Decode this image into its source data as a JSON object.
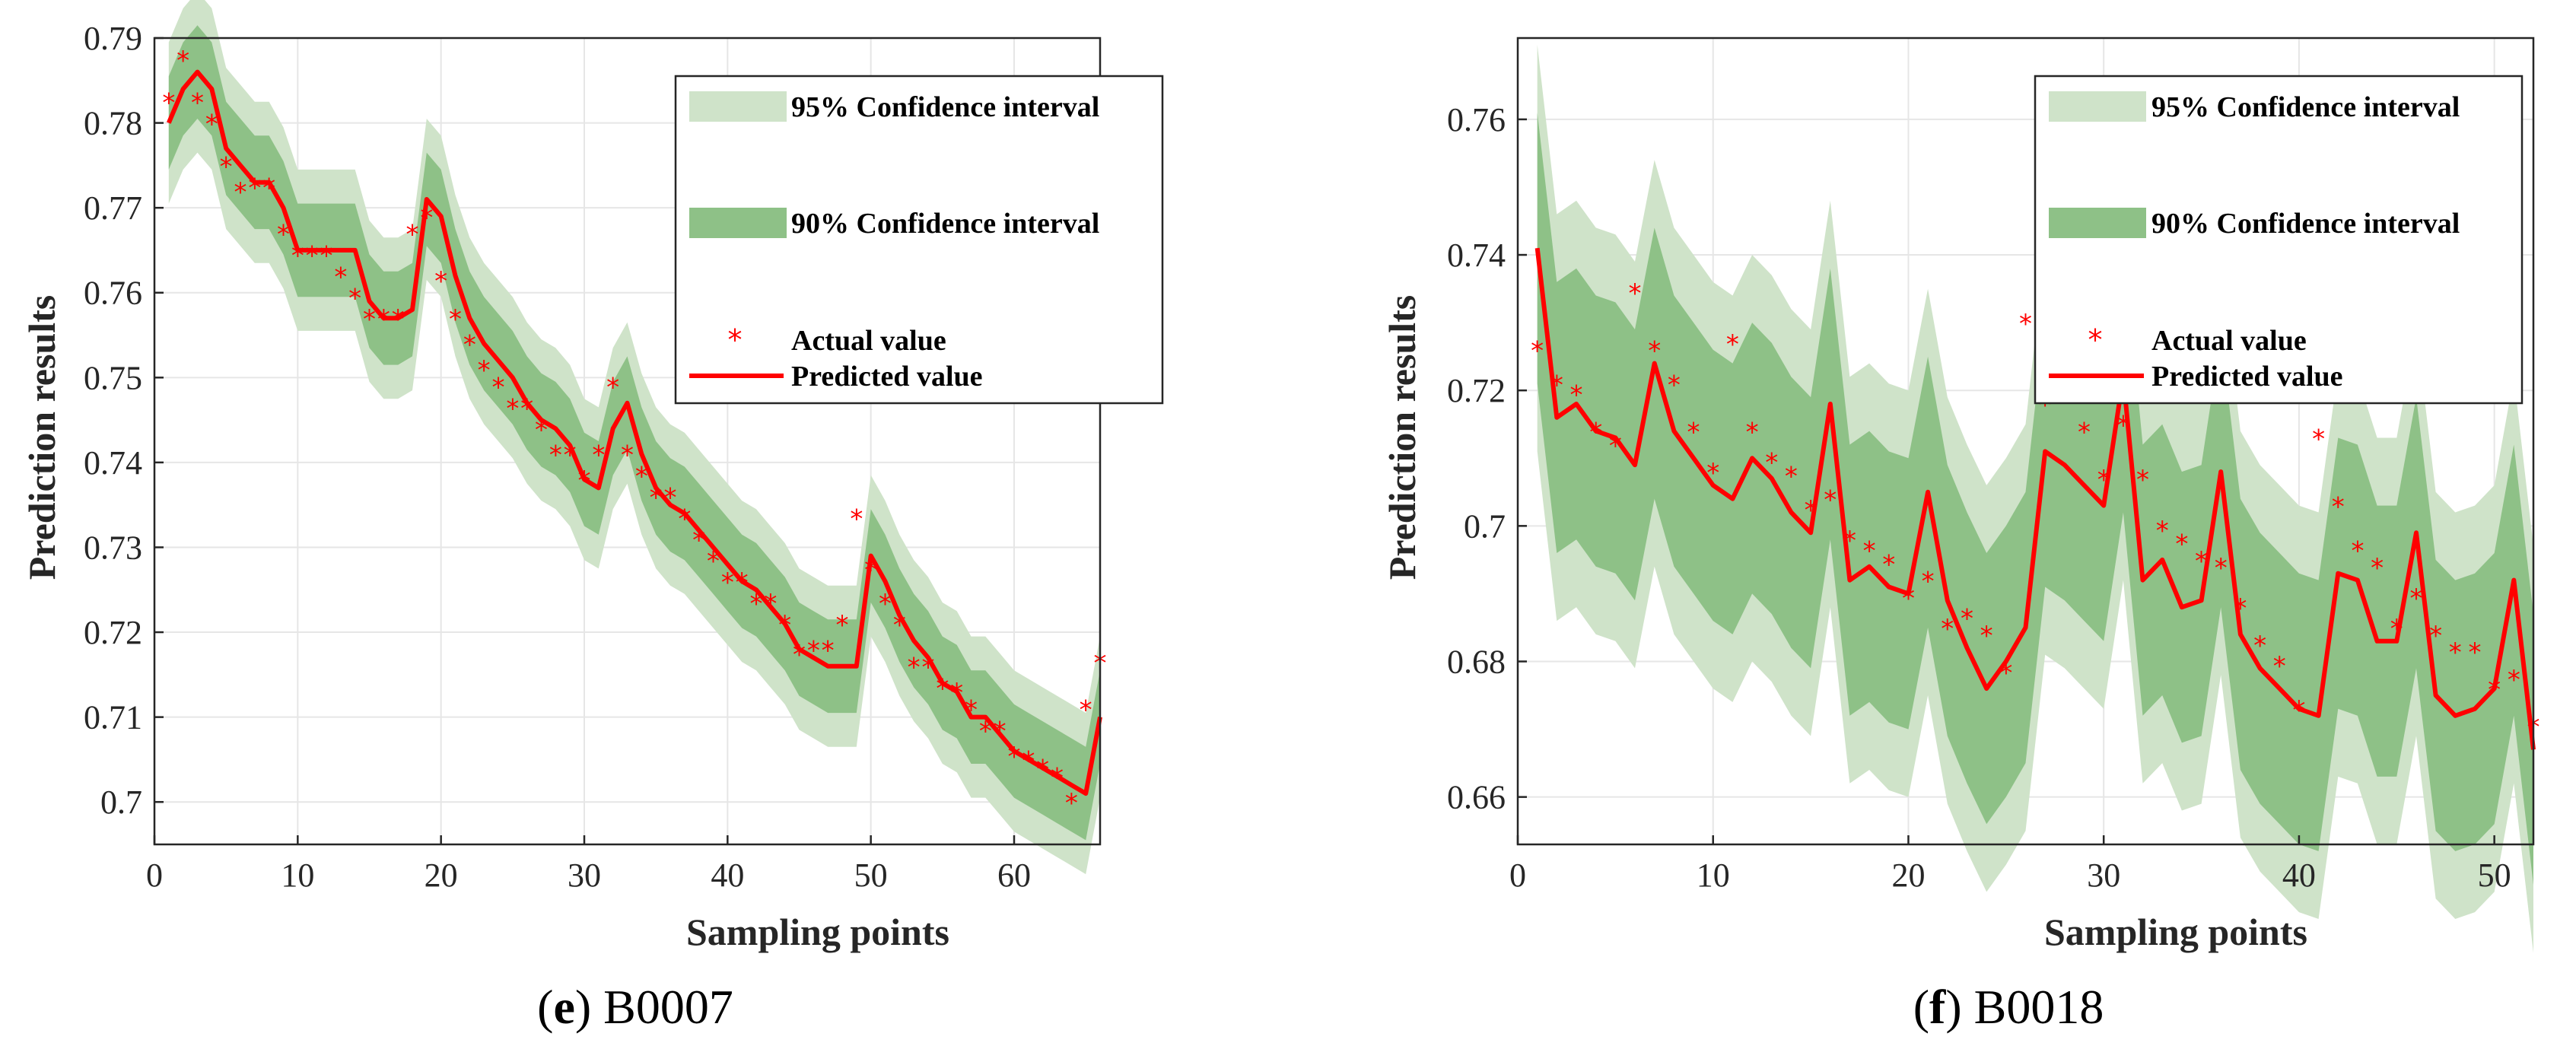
{
  "colors": {
    "band95": "#cfe3c9",
    "band90": "#8ec187",
    "predicted": "#ff0000",
    "actual": "#ff0000",
    "axis": "#262626",
    "grid": "#e6e6e6"
  },
  "chart_data": [
    {
      "id": "e",
      "type": "line",
      "caption_letter": "e",
      "caption_text": " B0007",
      "xlabel": "Sampling points",
      "ylabel": "Prediction results",
      "xlim": [
        0,
        66
      ],
      "ylim": [
        0.695,
        0.79
      ],
      "xticks": [
        0,
        10,
        20,
        30,
        40,
        50,
        60
      ],
      "xtick_labels": [
        "0",
        "10",
        "20",
        "30",
        "40",
        "50",
        "60"
      ],
      "yticks": [
        0.7,
        0.71,
        0.72,
        0.73,
        0.74,
        0.75,
        0.76,
        0.77,
        0.78,
        0.79
      ],
      "ytick_labels": [
        "0.7",
        "0.71",
        "0.72",
        "0.73",
        "0.74",
        "0.75",
        "0.76",
        "0.77",
        "0.78",
        "0.79"
      ],
      "grid": true,
      "legend": [
        "95% Confidence interval",
        "90% Confidence interval",
        "Actual value",
        "Predicted value"
      ],
      "legend_position": "top-right",
      "band95_halfwidth": 0.0095,
      "band90_halfwidth": 0.0055,
      "x": [
        1,
        2,
        3,
        4,
        5,
        6,
        7,
        8,
        9,
        10,
        11,
        12,
        13,
        14,
        15,
        16,
        17,
        18,
        19,
        20,
        21,
        22,
        23,
        24,
        25,
        26,
        27,
        28,
        29,
        30,
        31,
        32,
        33,
        34,
        35,
        36,
        37,
        38,
        39,
        40,
        41,
        42,
        43,
        44,
        45,
        46,
        47,
        48,
        49,
        50,
        51,
        52,
        53,
        54,
        55,
        56,
        57,
        58,
        59,
        60,
        61,
        62,
        63,
        64,
        65,
        66
      ],
      "predicted": [
        0.78,
        0.784,
        0.786,
        0.784,
        0.777,
        0.775,
        0.773,
        0.773,
        0.77,
        0.765,
        0.765,
        0.765,
        0.765,
        0.765,
        0.759,
        0.757,
        0.757,
        0.758,
        0.771,
        0.769,
        0.762,
        0.757,
        0.754,
        0.752,
        0.75,
        0.747,
        0.745,
        0.744,
        0.742,
        0.738,
        0.737,
        0.744,
        0.747,
        0.741,
        0.737,
        0.735,
        0.734,
        0.732,
        0.73,
        0.728,
        0.726,
        0.725,
        0.723,
        0.721,
        0.718,
        0.717,
        0.716,
        0.716,
        0.716,
        0.729,
        0.726,
        0.722,
        0.719,
        0.717,
        0.714,
        0.713,
        0.71,
        0.71,
        0.708,
        0.706,
        0.705,
        0.704,
        0.703,
        0.702,
        0.701,
        0.71
      ],
      "actual": [
        0.7825,
        0.7875,
        0.7825,
        0.78,
        0.775,
        0.772,
        0.7725,
        0.7725,
        0.767,
        0.7645,
        0.7645,
        0.7645,
        0.762,
        0.7595,
        0.757,
        0.757,
        0.757,
        0.767,
        0.769,
        0.7615,
        0.757,
        0.754,
        0.751,
        0.749,
        0.7465,
        0.7465,
        0.744,
        0.741,
        0.741,
        0.738,
        0.741,
        0.749,
        0.741,
        0.7385,
        0.736,
        0.736,
        0.7335,
        0.731,
        0.7285,
        0.726,
        0.726,
        0.7235,
        0.7235,
        0.721,
        0.7175,
        0.718,
        0.718,
        0.721,
        0.7335,
        0.7275,
        0.7235,
        0.721,
        0.716,
        0.716,
        0.7135,
        0.713,
        0.711,
        0.7085,
        0.7085,
        0.7055,
        0.705,
        0.704,
        0.703,
        0.7,
        0.711,
        0.7165
      ]
    },
    {
      "id": "f",
      "type": "line",
      "caption_letter": "f",
      "caption_text": " B0018",
      "xlabel": "Sampling points",
      "ylabel": "Prediction results",
      "xlim": [
        0,
        52
      ],
      "ylim": [
        0.653,
        0.772
      ],
      "xticks": [
        0,
        10,
        20,
        30,
        40,
        50
      ],
      "xtick_labels": [
        "0",
        "10",
        "20",
        "30",
        "40",
        "50"
      ],
      "yticks": [
        0.66,
        0.68,
        0.7,
        0.72,
        0.74,
        0.76
      ],
      "ytick_labels": [
        "0.66",
        "0.68",
        "0.7",
        "0.72",
        "0.74",
        "0.76"
      ],
      "grid": true,
      "legend": [
        "95% Confidence interval",
        "90% Confidence interval",
        "Actual value",
        "Predicted value"
      ],
      "legend_position": "top-right",
      "band95_halfwidth": 0.03,
      "band90_halfwidth": 0.02,
      "x": [
        1,
        2,
        3,
        4,
        5,
        6,
        7,
        8,
        9,
        10,
        11,
        12,
        13,
        14,
        15,
        16,
        17,
        18,
        19,
        20,
        21,
        22,
        23,
        24,
        25,
        26,
        27,
        28,
        29,
        30,
        31,
        32,
        33,
        34,
        35,
        36,
        37,
        38,
        39,
        40,
        41,
        42,
        43,
        44,
        45,
        46,
        47,
        48,
        49,
        50,
        51,
        52
      ],
      "predicted": [
        0.741,
        0.716,
        0.718,
        0.714,
        0.713,
        0.709,
        0.724,
        0.714,
        0.71,
        0.706,
        0.704,
        0.71,
        0.707,
        0.702,
        0.699,
        0.718,
        0.692,
        0.694,
        0.691,
        0.69,
        0.705,
        0.689,
        0.682,
        0.676,
        0.68,
        0.685,
        0.711,
        0.709,
        0.706,
        0.703,
        0.722,
        0.692,
        0.695,
        0.688,
        0.689,
        0.708,
        0.684,
        0.679,
        0.676,
        0.673,
        0.672,
        0.693,
        0.692,
        0.683,
        0.683,
        0.699,
        0.675,
        0.672,
        0.673,
        0.676,
        0.692,
        0.667
      ],
      "actual": [
        0.726,
        0.721,
        0.7195,
        0.714,
        0.712,
        0.7345,
        0.726,
        0.721,
        0.714,
        0.708,
        0.727,
        0.714,
        0.7095,
        0.7075,
        0.7025,
        0.704,
        0.698,
        0.6965,
        0.6945,
        0.6895,
        0.692,
        0.685,
        0.6865,
        0.684,
        0.6785,
        0.73,
        0.718,
        0.723,
        0.714,
        0.707,
        0.715,
        0.707,
        0.6995,
        0.6975,
        0.695,
        0.694,
        0.688,
        0.6825,
        0.6795,
        0.673,
        0.713,
        0.703,
        0.6965,
        0.694,
        0.685,
        0.6895,
        0.684,
        0.6815,
        0.6815,
        0.676,
        0.6775,
        0.6705
      ]
    }
  ]
}
